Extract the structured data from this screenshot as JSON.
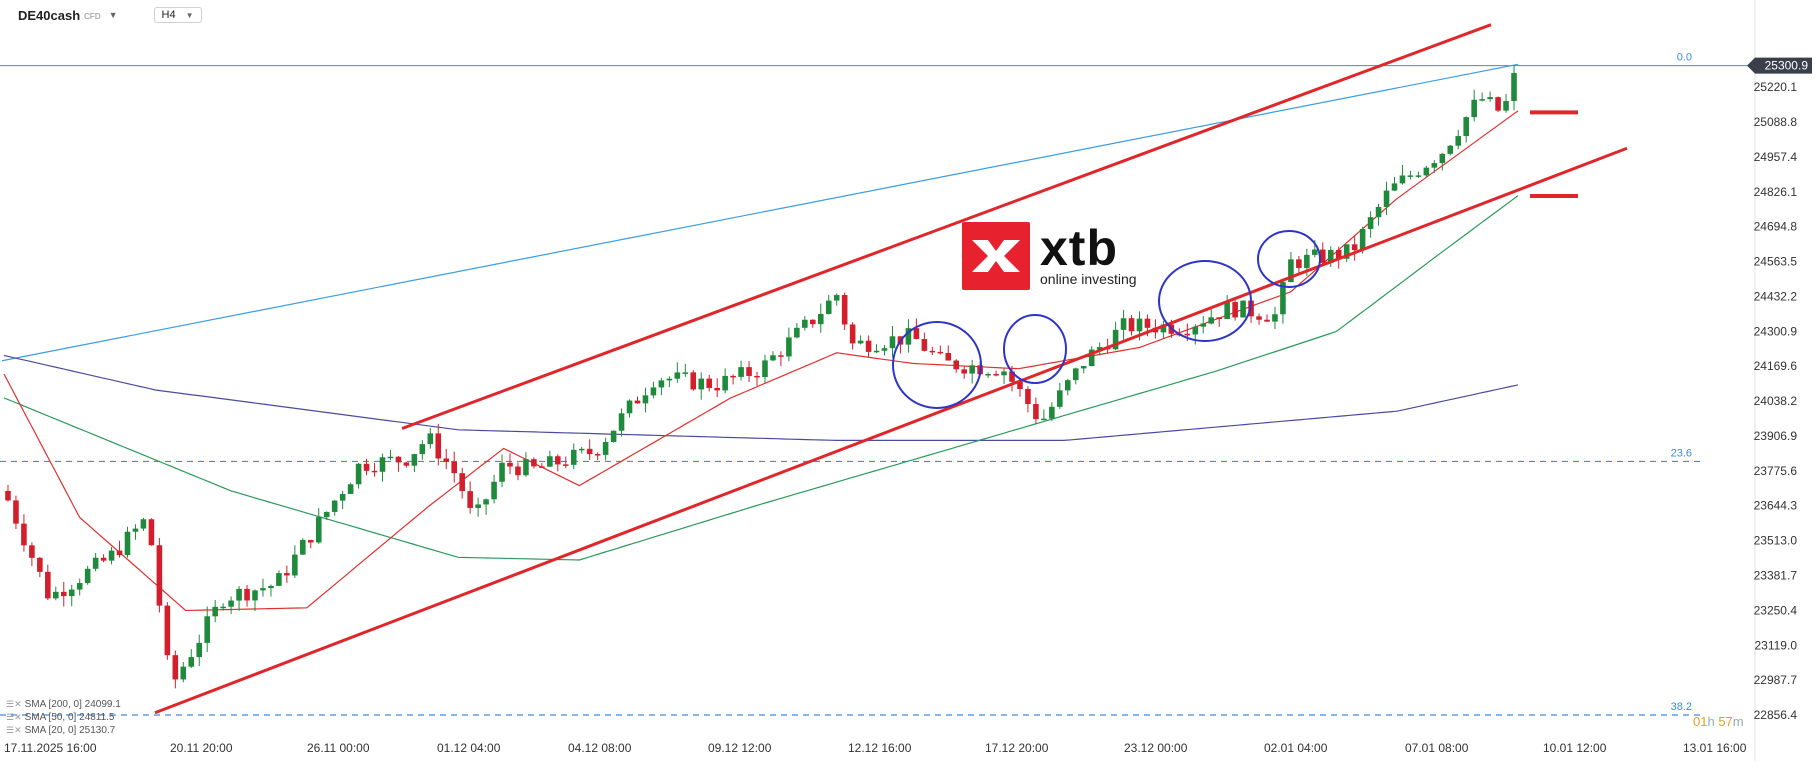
{
  "header": {
    "symbol": "DE40cash",
    "symbol_tag": "CFD",
    "timeframe": "H4"
  },
  "logo": {
    "word": "xtb",
    "tagline": "online investing"
  },
  "indicators": [
    {
      "label": "SMA [200, 0] 24099.1",
      "color": "#4b4b9e"
    },
    {
      "label": "SMA [50, 0] 24811.5",
      "color": "#2a9a5a"
    },
    {
      "label": "SMA [20, 0] 25130.7",
      "color": "#e0302e"
    }
  ],
  "countdown": {
    "hours": "01",
    "hours_unit": "h",
    "minutes": "57",
    "minutes_unit": "m"
  },
  "chart_data": {
    "type": "candlestick",
    "symbol": "DE40cash",
    "timeframe": "H4",
    "current_price": 25300.9,
    "ylim": [
      22800,
      25420
    ],
    "y_ticks": [
      25220.1,
      25088.8,
      24957.4,
      24826.1,
      24694.8,
      24563.5,
      24432.2,
      24300.9,
      24169.6,
      24038.2,
      23906.9,
      23775.6,
      23644.3,
      23513.0,
      23381.7,
      23250.4,
      23119.0,
      22987.7,
      22856.4
    ],
    "x_ticks": [
      "17.11.2025   16:00",
      "20.11 20:00",
      "26.11 00:00",
      "01.12 04:00",
      "04.12 08:00",
      "09.12 12:00",
      "12.12 16:00",
      "17.12 20:00",
      "23.12 00:00",
      "02.01 04:00",
      "07.01 08:00",
      "10.01 12:00",
      "13.01 16:00"
    ],
    "fib_levels": [
      {
        "label": "0.0",
        "price": 25300.9
      },
      {
        "label": "23.6",
        "price": 23811.0
      },
      {
        "label": "38.2",
        "price": 22856.4
      }
    ],
    "trend_channel": {
      "upper": [
        {
          "x": "28.11 16:00",
          "price": 23935
        },
        {
          "x": "07.01 00:00",
          "price": 25455
        }
      ],
      "lower": [
        {
          "x": "20.11 20:00",
          "price": 22865
        },
        {
          "x": "10.01 12:00",
          "price": 24990
        }
      ]
    },
    "long_trendline": [
      {
        "x": "17.11.2025 16:00",
        "price": 24190
      },
      {
        "x": "08.01 12:00",
        "price": 25306
      }
    ],
    "markers": [
      {
        "price": 25125
      },
      {
        "price": 24810
      }
    ],
    "highlight_circles": 4,
    "sma200_anchor": [
      [
        0,
        24210
      ],
      [
        0.1,
        24080
      ],
      [
        0.3,
        23930
      ],
      [
        0.55,
        23890
      ],
      [
        0.7,
        23890
      ],
      [
        0.82,
        23950
      ],
      [
        0.92,
        24000
      ],
      [
        1.0,
        24099.1
      ]
    ],
    "sma50_anchor": [
      [
        0,
        24050
      ],
      [
        0.15,
        23700
      ],
      [
        0.3,
        23450
      ],
      [
        0.38,
        23440
      ],
      [
        0.5,
        23650
      ],
      [
        0.65,
        23900
      ],
      [
        0.8,
        24150
      ],
      [
        0.88,
        24300
      ],
      [
        0.95,
        24600
      ],
      [
        1.0,
        24811.5
      ]
    ],
    "sma20_anchor": [
      [
        0,
        24140
      ],
      [
        0.05,
        23600
      ],
      [
        0.12,
        23250
      ],
      [
        0.2,
        23260
      ],
      [
        0.28,
        23640
      ],
      [
        0.33,
        23860
      ],
      [
        0.38,
        23720
      ],
      [
        0.48,
        24050
      ],
      [
        0.55,
        24220
      ],
      [
        0.6,
        24180
      ],
      [
        0.67,
        24160
      ],
      [
        0.75,
        24240
      ],
      [
        0.85,
        24450
      ],
      [
        0.92,
        24800
      ],
      [
        1.0,
        25130.7
      ]
    ],
    "price_path": [
      [
        0.0,
        23700
      ],
      [
        0.03,
        23300
      ],
      [
        0.07,
        23450
      ],
      [
        0.095,
        23600
      ],
      [
        0.11,
        22960
      ],
      [
        0.145,
        23300
      ],
      [
        0.18,
        23350
      ],
      [
        0.235,
        23800
      ],
      [
        0.265,
        23820
      ],
      [
        0.28,
        23900
      ],
      [
        0.3,
        23750
      ],
      [
        0.31,
        23580
      ],
      [
        0.33,
        23800
      ],
      [
        0.35,
        23780
      ],
      [
        0.39,
        23850
      ],
      [
        0.43,
        24130
      ],
      [
        0.47,
        24100
      ],
      [
        0.5,
        24160
      ],
      [
        0.535,
        24350
      ],
      [
        0.55,
        24440
      ],
      [
        0.56,
        24250
      ],
      [
        0.6,
        24280
      ],
      [
        0.62,
        24180
      ],
      [
        0.66,
        24160
      ],
      [
        0.685,
        23960
      ],
      [
        0.715,
        24200
      ],
      [
        0.74,
        24320
      ],
      [
        0.78,
        24320
      ],
      [
        0.81,
        24390
      ],
      [
        0.84,
        24360
      ],
      [
        0.85,
        24560
      ],
      [
        0.87,
        24580
      ],
      [
        0.89,
        24600
      ],
      [
        0.915,
        24830
      ],
      [
        0.95,
        24980
      ],
      [
        0.975,
        25180
      ],
      [
        0.99,
        25120
      ],
      [
        1.0,
        25300.9
      ]
    ]
  }
}
